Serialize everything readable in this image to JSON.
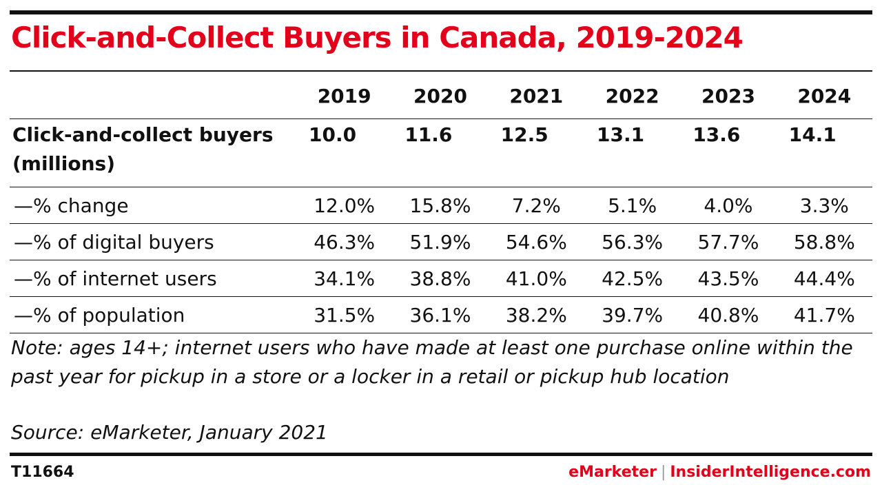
{
  "title": "Click-and-Collect Buyers in Canada, 2019-2024",
  "chart_data": {
    "type": "table",
    "title": "Click-and-Collect Buyers in Canada, 2019-2024",
    "columns": [
      "2019",
      "2020",
      "2021",
      "2022",
      "2023",
      "2024"
    ],
    "rows": [
      {
        "label": "Click-and-collect buyers (millions)",
        "values": [
          10.0,
          11.6,
          12.5,
          13.1,
          13.6,
          14.1
        ],
        "display": [
          "10.0",
          "11.6",
          "12.5",
          "13.1",
          "13.6",
          "14.1"
        ]
      },
      {
        "label": "—% change",
        "values": [
          12.0,
          15.8,
          7.2,
          5.1,
          4.0,
          3.3
        ],
        "display": [
          "12.0%",
          "15.8%",
          "7.2%",
          "5.1%",
          "4.0%",
          "3.3%"
        ]
      },
      {
        "label": "—% of digital buyers",
        "values": [
          46.3,
          51.9,
          54.6,
          56.3,
          57.7,
          58.8
        ],
        "display": [
          "46.3%",
          "51.9%",
          "54.6%",
          "56.3%",
          "57.7%",
          "58.8%"
        ]
      },
      {
        "label": "—% of internet users",
        "values": [
          34.1,
          38.8,
          41.0,
          42.5,
          43.5,
          44.4
        ],
        "display": [
          "34.1%",
          "38.8%",
          "41.0%",
          "42.5%",
          "43.5%",
          "44.4%"
        ]
      },
      {
        "label": "—% of population",
        "values": [
          31.5,
          36.1,
          38.2,
          39.7,
          40.8,
          41.7
        ],
        "display": [
          "31.5%",
          "36.1%",
          "38.2%",
          "39.7%",
          "40.8%",
          "41.7%"
        ]
      }
    ]
  },
  "note": "Note: ages 14+; internet users who have made at least one purchase online within the past year for pickup in a store or a locker in a retail or pickup hub location",
  "source": "Source: eMarketer, January 2021",
  "footer": {
    "chart_id": "T11664",
    "brand_emarketer": "eMarketer",
    "brand_separator": "|",
    "brand_insider": "InsiderIntelligence.com"
  },
  "colors": {
    "accent": "#e2001a",
    "text": "#111111"
  }
}
